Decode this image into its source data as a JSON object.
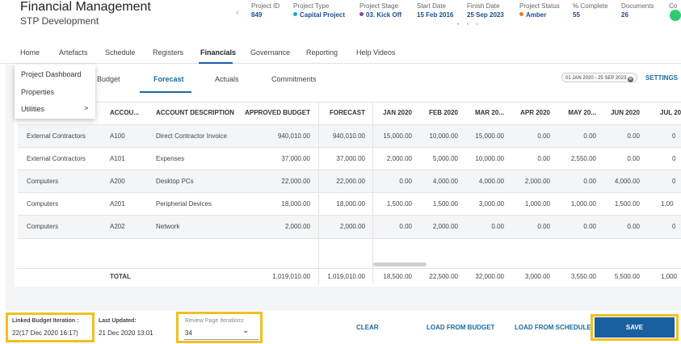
{
  "header": {
    "title": "Financial Management",
    "subtitle": "STP Development",
    "meta": [
      {
        "key": "Project ID",
        "value": "849"
      },
      {
        "key": "Project Type",
        "value": "Capital Project",
        "dot_color": "#2a9fd6"
      },
      {
        "key": "Project Stage",
        "value": "03. Kick Off",
        "dot_color": "#8e44ad"
      },
      {
        "key": "Start Date",
        "value": "15 Feb 2016"
      },
      {
        "key": "Finish Date",
        "value": "25 Sep 2023"
      },
      {
        "key": "Project Status",
        "value": "Amber",
        "dot_color": "#e67e22"
      },
      {
        "key": "% Complete",
        "value": "55"
      },
      {
        "key": "Documents",
        "value": "26"
      },
      {
        "key": "Co"
      }
    ],
    "pager_dots": "• • •"
  },
  "nav": {
    "items": [
      "Home",
      "Artefacts",
      "Schedule",
      "Registers",
      "Financials",
      "Governance",
      "Reporting",
      "Help Videos"
    ],
    "active": "Financials"
  },
  "dropdown": {
    "items": [
      "Project Dashboard",
      "Properties",
      "Utilities"
    ],
    "submenu_arrow": ">"
  },
  "subtabs": {
    "items": [
      "Budget",
      "Forecast",
      "Actuals",
      "Commitments"
    ],
    "active": "Forecast"
  },
  "date_range": "01 JAN 2020 - 25 SEP 2023",
  "date_clear_icon": "⊗",
  "settings_label": "SETTINGS",
  "table": {
    "headers": [
      "ACCOU...",
      "ACCOUNT DESCRIPTION",
      "APPROVED BUDGET",
      "FORECAST",
      "JAN 2020",
      "FEB 2020",
      "MAR 20...",
      "APR 2020",
      "MAY 20...",
      "JUN 2020",
      "JUL 20"
    ],
    "rows": [
      {
        "category": "External Contractors",
        "code": "A100",
        "desc": "Direct Contractor Invoice",
        "budget": "940,010.00",
        "forecast": "940,010.00",
        "m": [
          "15,000.00",
          "10,000.00",
          "15,000.00",
          "0.00",
          "0.00",
          "0.00",
          "0"
        ]
      },
      {
        "category": "External Contractors",
        "code": "A101",
        "desc": "Expenses",
        "budget": "37,000.00",
        "forecast": "37,000.00",
        "m": [
          "2,000.00",
          "5,000.00",
          "10,000.00",
          "0.00",
          "2,550.00",
          "0.00",
          "0"
        ]
      },
      {
        "category": "Computers",
        "code": "A200",
        "desc": "Desktop PCs",
        "budget": "22,000.00",
        "forecast": "22,000.00",
        "m": [
          "0.00",
          "4,000.00",
          "4,000.00",
          "2,000.00",
          "0.00",
          "4,000.00",
          "0"
        ]
      },
      {
        "category": "Computers",
        "code": "A201",
        "desc": "Peripherial Devices",
        "budget": "18,000.00",
        "forecast": "18,000.00",
        "m": [
          "1,500.00",
          "1,500.00",
          "3,000.00",
          "1,000.00",
          "1,000.00",
          "1,500.00",
          "1,00"
        ]
      },
      {
        "category": "Computers",
        "code": "A202",
        "desc": "Network",
        "budget": "2,000.00",
        "forecast": "2,000.00",
        "m": [
          "0.00",
          "2,000.00",
          "0.00",
          "0.00",
          "0.00",
          "0.00",
          "0"
        ]
      }
    ],
    "total": {
      "label": "TOTAL",
      "budget": "1,019,010.00",
      "forecast": "1,019,010.00",
      "m": [
        "18,500.00",
        "22,500.00",
        "32,000.00",
        "3,000.00",
        "3,550.00",
        "5,500.00",
        "1,000"
      ]
    }
  },
  "footer": {
    "linked_budget_label": "Linked Budget Iteration :",
    "linked_budget_value": "22(17 Dec 2020 16:17)",
    "last_updated_label": "Last Updated:",
    "last_updated_value": "21 Dec 2020 13:01",
    "review_label": "Review Page Iterations:",
    "review_value": "34",
    "clear_label": "CLEAR",
    "load_budget_label": "LOAD FROM BUDGET",
    "load_schedule_label": "LOAD FROM SCHEDULE",
    "save_label": "SAVE",
    "highlight_color": "#f0c020"
  }
}
